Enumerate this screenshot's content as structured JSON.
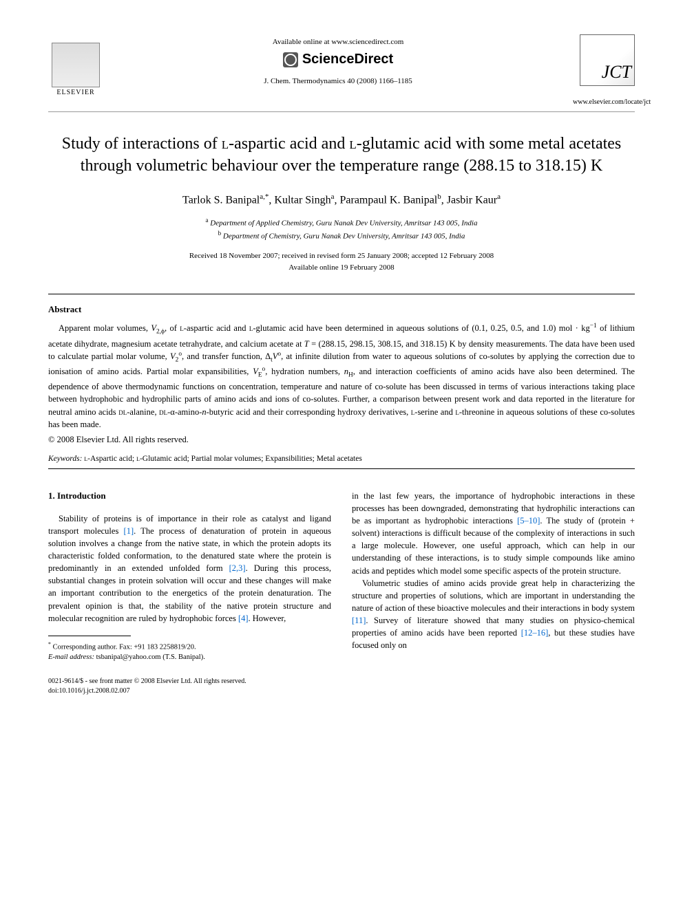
{
  "header": {
    "available_online": "Available online at www.sciencedirect.com",
    "sciencedirect": "ScienceDirect",
    "journal_ref": "J. Chem. Thermodynamics 40 (2008) 1166–1185",
    "elsevier": "ELSEVIER",
    "jct": "JCT",
    "journal_url": "www.elsevier.com/locate/jct"
  },
  "title_parts": {
    "pre1": "Study of interactions of ",
    "sc1": "l",
    "mid1": "-aspartic acid and ",
    "sc2": "l",
    "post": "-glutamic acid with some metal acetates through volumetric behaviour over the temperature range (288.15 to 318.15) K"
  },
  "authors": {
    "a1_name": "Tarlok S. Banipal",
    "a1_sup": "a,*",
    "a2_name": "Kultar Singh",
    "a2_sup": "a",
    "a3_name": "Parampaul K. Banipal",
    "a3_sup": "b",
    "a4_name": "Jasbir Kaur",
    "a4_sup": "a"
  },
  "affiliations": {
    "a_sup": "a",
    "a_text": " Department of Applied Chemistry, Guru Nanak Dev University, Amritsar 143 005, India",
    "b_sup": "b",
    "b_text": " Department of Chemistry, Guru Nanak Dev University, Amritsar 143 005, India"
  },
  "dates": {
    "line1": "Received 18 November 2007; received in revised form 25 January 2008; accepted 12 February 2008",
    "line2": "Available online 19 February 2008"
  },
  "abstract": {
    "heading": "Abstract",
    "p1a": "Apparent molar volumes, ",
    "p1b": ", of ",
    "sc1": "l",
    "p1c": "-aspartic acid and ",
    "sc2": "l",
    "p1d": "-glutamic acid have been determined in aqueous solutions of (0.1, 0.25, 0.5, and 1.0) mol · kg",
    "p1e": " of lithium acetate dihydrate, magnesium acetate tetrahydrate, and calcium acetate at ",
    "p1f": " = (288.15, 298.15, 308.15, and 318.15) K by density measurements. The data have been used to calculate partial molar volume, ",
    "p1g": ", and transfer function, Δ",
    "p1h": ", at infinite dilution from water to aqueous solutions of co-solutes by applying the correction due to ionisation of amino acids. Partial molar expansibilities, ",
    "p1i": ", hydration numbers, ",
    "p1j": ", and interaction coefficients of amino acids have also been determined. The dependence of above thermodynamic functions on concentration, temperature and nature of co-solute has been discussed in terms of various interactions taking place between hydrophobic and hydrophilic parts of amino acids and ions of co-solutes. Further, a comparison between present work and data reported in the literature for neutral amino acids ",
    "sc3": "dl",
    "p1k": "-alanine, ",
    "sc4": "dl",
    "p1l": "-α-amino-",
    "p1m": "-butyric acid and their corresponding hydroxy derivatives, ",
    "sc5": "l",
    "p1n": "-serine and ",
    "sc6": "l",
    "p1o": "-threonine in aqueous solutions of these co-solutes has been made.",
    "copyright": "© 2008 Elsevier Ltd. All rights reserved.",
    "V2phi": "V",
    "V2phi_sub": "2,ϕ",
    "V2o": "V",
    "V2o_sub": "2",
    "V2o_sup": "o",
    "dtV": "V",
    "dtV_sub": "t",
    "dtV_sup": "o",
    "VE": "V",
    "VE_sub": "E",
    "VE_sup": "o",
    "nH": "n",
    "nH_sub": "H",
    "T": "T",
    "n_ital": "n",
    "minus1": "−1"
  },
  "keywords": {
    "label": "Keywords: ",
    "sc1": "l",
    "k1": "-Aspartic acid; ",
    "sc2": "l",
    "k2": "-Glutamic acid; Partial molar volumes; Expansibilities; Metal acetates"
  },
  "intro": {
    "heading": "1. Introduction",
    "col1_p1a": "Stability of proteins is of importance in their role as catalyst and ligand transport molecules ",
    "ref1": "[1]",
    "col1_p1b": ". The process of denaturation of protein in aqueous solution involves a change from the native state, in which the protein adopts its characteristic folded conformation, to the denatured state where the protein is predominantly in an extended unfolded form ",
    "ref23": "[2,3]",
    "col1_p1c": ". During this process, substantial changes in protein solvation will occur and these changes will make an important contribution to the energetics of the protein denaturation. The prevalent opinion is that, the stability of the native protein structure and molecular recognition are ruled by hydrophobic forces ",
    "ref4": "[4]",
    "col1_p1d": ". However,",
    "col2_p1a": "in the last few years, the importance of hydrophobic interactions in these processes has been downgraded, demonstrating that hydrophilic interactions can be as important as hydrophobic interactions ",
    "ref510": "[5–10]",
    "col2_p1b": ". The study of (protein + solvent) interactions is difficult because of the complexity of interactions in such a large molecule. However, one useful approach, which can help in our understanding of these interactions, is to study simple compounds like amino acids and peptides which model some specific aspects of the protein structure.",
    "col2_p2a": "Volumetric studies of amino acids provide great help in characterizing the structure and properties of solutions, which are important in understanding the nature of action of these bioactive molecules and their interactions in body system ",
    "ref11": "[11]",
    "col2_p2b": ". Survey of literature showed that many studies on physico-chemical properties of amino acids have been reported ",
    "ref1216": "[12–16]",
    "col2_p2c": ", but these studies have focused only on"
  },
  "footnote": {
    "corr_label": "Corresponding author. Fax: +91 183 2258819/20.",
    "email_label": "E-mail address: ",
    "email": "tsbanipal@yahoo.com",
    "email_who": " (T.S. Banipal).",
    "star": "*"
  },
  "footer": {
    "line1": "0021-9614/$ - see front matter © 2008 Elsevier Ltd. All rights reserved.",
    "line2": "doi:10.1016/j.jct.2008.02.007"
  }
}
